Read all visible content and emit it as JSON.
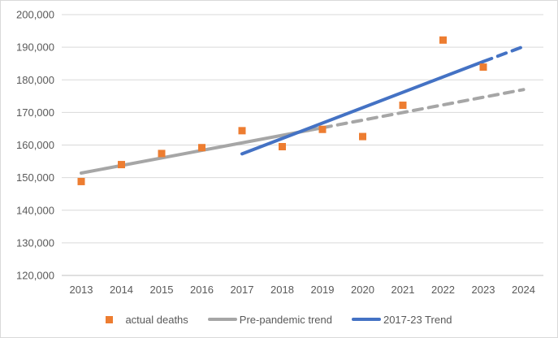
{
  "window": {
    "background": "#ffffff",
    "border_color": "#d9d9d9"
  },
  "chart_data": {
    "type": "line",
    "title": "",
    "xlabel": "",
    "ylabel": "",
    "ylim": [
      120000,
      200000
    ],
    "yticks": [
      120000,
      130000,
      140000,
      150000,
      160000,
      170000,
      180000,
      190000,
      200000
    ],
    "ytick_labels": [
      "120,000",
      "130,000",
      "140,000",
      "150,000",
      "160,000",
      "170,000",
      "180,000",
      "190,000",
      "200,000"
    ],
    "xticks": [
      2013,
      2014,
      2015,
      2016,
      2017,
      2018,
      2019,
      2020,
      2021,
      2022,
      2023,
      2024
    ],
    "xtick_labels": [
      "2013",
      "2014",
      "2015",
      "2016",
      "2017",
      "2018",
      "2019",
      "2020",
      "2021",
      "2022",
      "2023",
      "2024"
    ],
    "grid": "horizontal",
    "gridline_color": "#d9d9d9",
    "axis_line_color": "#bfbfbf",
    "axis_text_color": "#595959",
    "legend_position": "bottom",
    "series": [
      {
        "name": "actual deaths",
        "type": "scatter",
        "marker": "square",
        "color": "#ED7D31",
        "x": [
          2013,
          2014,
          2015,
          2016,
          2017,
          2018,
          2019,
          2020,
          2021,
          2022,
          2023
        ],
        "values": [
          148800,
          154000,
          157400,
          159200,
          164400,
          159500,
          164800,
          162600,
          172200,
          192200,
          183900
        ]
      },
      {
        "name": "Pre-pandemic trend",
        "type": "line",
        "color": "#A6A6A6",
        "segments": [
          {
            "style": "solid",
            "x": [
              2013,
              2019
            ],
            "values": [
              151400,
              165300
            ]
          },
          {
            "style": "dashed",
            "x": [
              2019,
              2024
            ],
            "values": [
              165300,
              177000
            ]
          }
        ]
      },
      {
        "name": "2017-23 Trend",
        "type": "line",
        "color": "#4472C4",
        "segments": [
          {
            "style": "solid",
            "x": [
              2017,
              2023
            ],
            "values": [
              157300,
              185600
            ]
          },
          {
            "style": "dashed",
            "x": [
              2023,
              2024
            ],
            "values": [
              185600,
              190200
            ]
          }
        ]
      }
    ]
  },
  "legend": {
    "items": [
      {
        "label": "actual deaths",
        "swatch": "square",
        "color": "#ED7D31"
      },
      {
        "label": "Pre-pandemic trend",
        "swatch": "line",
        "color": "#A6A6A6"
      },
      {
        "label": "2017-23 Trend",
        "swatch": "line",
        "color": "#4472C4"
      }
    ]
  }
}
